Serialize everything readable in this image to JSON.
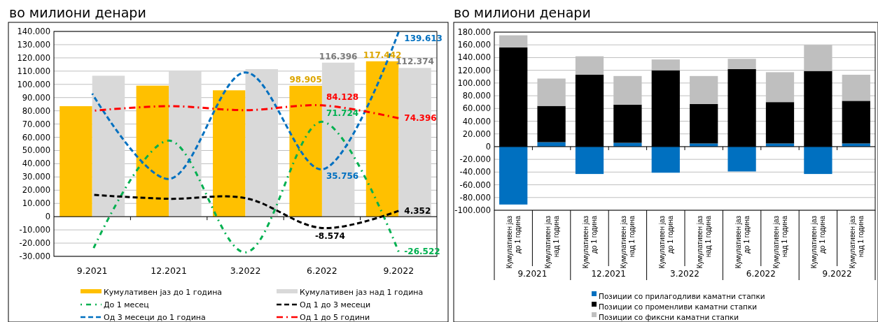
{
  "chart_data": [
    {
      "type": "bar",
      "title": "во милиони денари",
      "categories": [
        "9.2021",
        "12.2021",
        "3.2022",
        "6.2022",
        "9.2022"
      ],
      "series": [
        {
          "type": "bar",
          "name": "Кумулативен јаз до 1 година",
          "color": "#ffc000",
          "values": [
            83500,
            99000,
            95500,
            98905,
            117442
          ],
          "value_labels": [
            null,
            null,
            null,
            "98.905",
            "117.442"
          ]
        },
        {
          "type": "bar",
          "name": "Кумулативен јаз над 1 година",
          "color": "#d9d9d9",
          "values": [
            106500,
            110500,
            111500,
            116396,
            112374
          ],
          "value_labels": [
            null,
            null,
            null,
            "116.396",
            "112.374"
          ]
        },
        {
          "type": "line",
          "name": "До 1 месец",
          "color": "#00b050",
          "line_style": "dotted",
          "values": [
            -26000,
            57500,
            -27000,
            71724,
            -26522
          ],
          "value_labels": [
            null,
            null,
            null,
            "71.724",
            "-26.522"
          ]
        },
        {
          "type": "line",
          "name": "Од 1 до 3 месеци",
          "color": "#000000",
          "line_style": "dashed",
          "values": [
            16500,
            13500,
            14000,
            -8574,
            4352
          ],
          "value_labels": [
            null,
            null,
            null,
            "-8.574",
            "4.352"
          ]
        },
        {
          "type": "line",
          "name": "Од 3 месеци до 1 година",
          "color": "#0070c0",
          "line_style": "dashed",
          "values": [
            93000,
            28500,
            109000,
            35756,
            139613
          ],
          "value_labels": [
            null,
            null,
            null,
            "35.756",
            "139.613"
          ]
        },
        {
          "type": "line",
          "name": "Од 1 до 5 години",
          "color": "#ff0000",
          "line_style": "dashed",
          "values": [
            80000,
            83500,
            80500,
            84128,
            74396
          ],
          "value_labels": [
            null,
            null,
            null,
            "84.128",
            "74.396"
          ]
        }
      ],
      "ylim": [
        -30000,
        140000
      ],
      "yticks": [
        {
          "value": -30000,
          "label": "-30.000"
        },
        {
          "value": -20000,
          "label": "-20.000"
        },
        {
          "value": -10000,
          "label": "-10.000"
        },
        0,
        {
          "value": 10000,
          "label": "10.000"
        },
        {
          "value": 20000,
          "label": "20.000"
        },
        {
          "value": 30000,
          "label": "30.000"
        },
        {
          "value": 40000,
          "label": "40.000"
        },
        {
          "value": 50000,
          "label": "50.000"
        },
        {
          "value": 60000,
          "label": "60.000"
        },
        {
          "value": 70000,
          "label": "70.000"
        },
        {
          "value": 80000,
          "label": "80.000"
        },
        {
          "value": 90000,
          "label": "90.000"
        },
        {
          "value": 100000,
          "label": "100.000"
        },
        {
          "value": 110000,
          "label": "110.000"
        },
        {
          "value": 120000,
          "label": "120.000"
        },
        {
          "value": 130000,
          "label": "130.000"
        },
        {
          "value": 140000,
          "label": "140.000"
        }
      ],
      "grid": "y",
      "legend": "bottom"
    },
    {
      "type": "bar",
      "title": "во милиони денари",
      "stacked": true,
      "categories": [
        "Кумулативен јаз до 1 година",
        "Кумулативен јаз над 1 година",
        "Кумулативен јаз до 1 година",
        "Кумулативен јаз над 1 година",
        "Кумулативен јаз до 1 година",
        "Кумулативен јаз над 1 година",
        "Кумулативен јаз до 1 година",
        "Кумулативен јаз над 1 година",
        "Кумулативен јаз до 1 година",
        "Кумулативен јаз над 1 година"
      ],
      "annotations": [
        "9.2021",
        "12.2021",
        "3.2022",
        "6.2022",
        "9.2022"
      ],
      "series": [
        {
          "name": "Позиции со прилагодливи каматни стапки",
          "color": "#0070c0",
          "values": [
            -91000,
            7000,
            -43000,
            6000,
            -41000,
            5000,
            -39000,
            5000,
            -43000,
            5000
          ]
        },
        {
          "name": "Позиции со променливи каматни стапки",
          "color": "#000000",
          "values": [
            156000,
            57000,
            113000,
            60000,
            120000,
            62000,
            122000,
            65000,
            119000,
            67000
          ]
        },
        {
          "name": "Позиции со фиксни каматни стапки",
          "color": "#bfbfbf",
          "values": [
            19000,
            43000,
            29000,
            45000,
            17000,
            44000,
            16000,
            47000,
            41000,
            41000
          ]
        }
      ],
      "ylim": [
        -100000,
        180000
      ],
      "yticks": [
        {
          "value": -100000,
          "label": "-100.000"
        },
        {
          "value": -80000,
          "label": "-80.000"
        },
        {
          "value": -60000,
          "label": "-60.000"
        },
        {
          "value": -40000,
          "label": "-40.000"
        },
        {
          "value": -20000,
          "label": "-20.000"
        },
        0,
        {
          "value": 20000,
          "label": "20.000"
        },
        {
          "value": 40000,
          "label": "40.000"
        },
        {
          "value": 60000,
          "label": "60.000"
        },
        {
          "value": 80000,
          "label": "80.000"
        },
        {
          "value": 100000,
          "label": "100.000"
        },
        {
          "value": 120000,
          "label": "120.000"
        },
        {
          "value": 140000,
          "label": "140.000"
        },
        {
          "value": 160000,
          "label": "160.000"
        },
        {
          "value": 180000,
          "label": "180.000"
        }
      ],
      "grid": "y",
      "legend": "bottom"
    }
  ]
}
